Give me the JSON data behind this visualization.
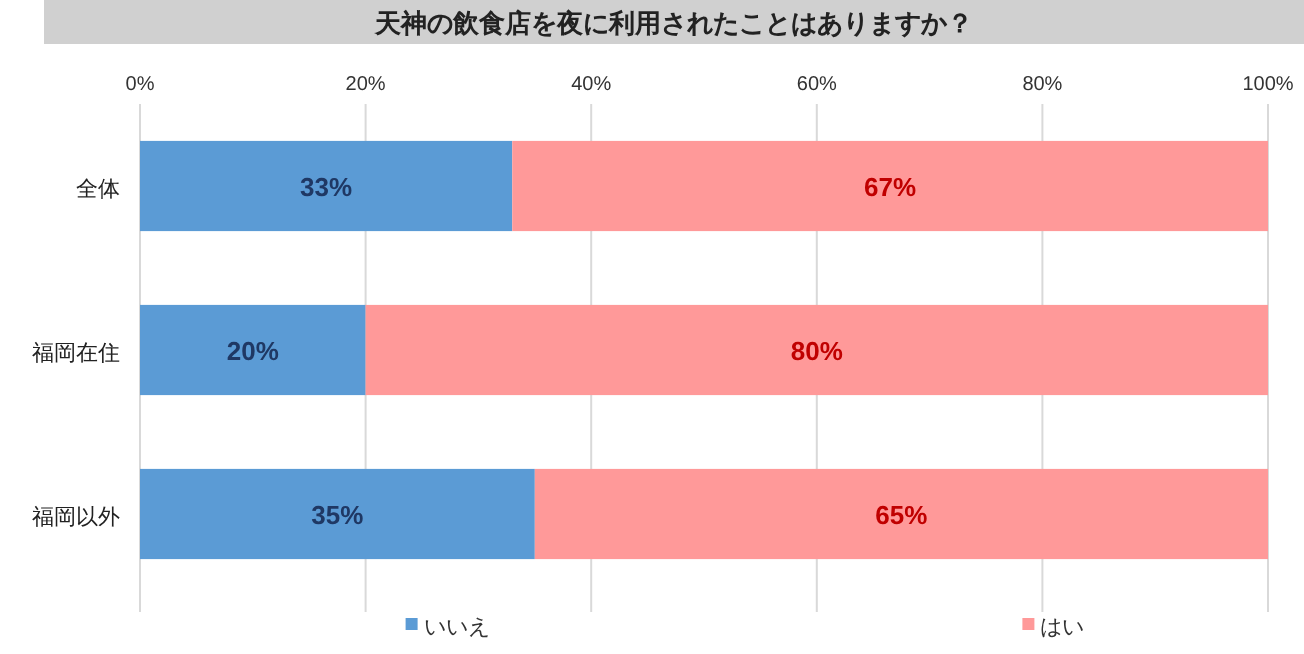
{
  "chart_data": {
    "type": "bar",
    "orientation": "horizontal",
    "stacked": true,
    "title": "天神の飲食店を夜に利用されたことはありますか？",
    "categories": [
      "全体",
      "福岡在住",
      "福岡以外"
    ],
    "series": [
      {
        "name": "いいえ",
        "color": "#5b9bd5",
        "values": [
          33,
          20,
          35
        ],
        "value_labels": [
          "33%",
          "20%",
          "35%"
        ]
      },
      {
        "name": "はい",
        "color": "#ff9999",
        "values": [
          67,
          80,
          65
        ],
        "value_labels": [
          "67%",
          "80%",
          "65%"
        ]
      }
    ],
    "xlim": [
      0,
      100
    ],
    "xticks": [
      {
        "value": 0,
        "label": "0%"
      },
      {
        "value": 20,
        "label": "20%"
      },
      {
        "value": 40,
        "label": "40%"
      },
      {
        "value": 60,
        "label": "60%"
      },
      {
        "value": 80,
        "label": "80%"
      },
      {
        "value": 100,
        "label": "100%"
      }
    ],
    "grid": "x",
    "legend": "bottom"
  }
}
